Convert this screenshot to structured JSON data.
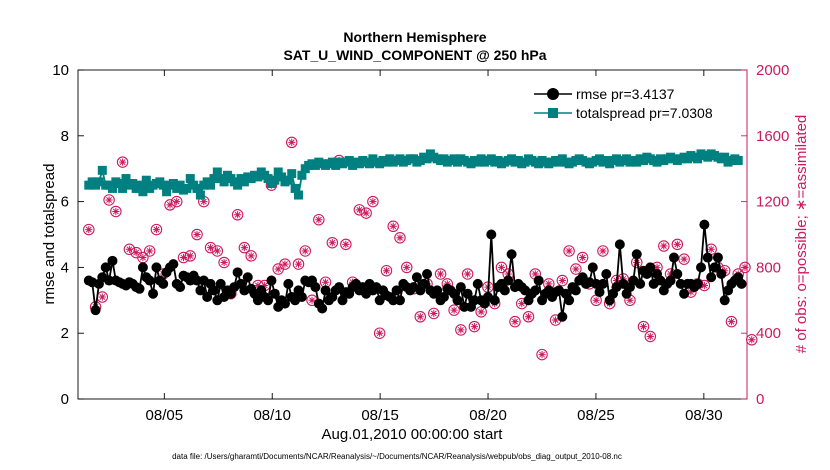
{
  "chart_data": {
    "type": "line",
    "title": "Northern Hemisphere",
    "subtitle": "SAT_U_WIND_COMPONENT @ 250 hPa",
    "xlabel": "Aug.01,2010 00:00:00 start",
    "ylabel_left": "rmse and totalspread",
    "ylabel_right": "# of obs: o=possible; ∗=assimilated",
    "footnote": "data file: /Users/gharamti/Documents/NCAR/Reanalysis/~/Documents/NCAR/Reanalysis/webpub/obs_diag_output_2010-08.nc",
    "xlim": [
      1.0,
      32.0
    ],
    "ylim_left": [
      0,
      10
    ],
    "ylim_right": [
      0,
      2000
    ],
    "x_ticks": [
      {
        "value": 5,
        "label": "08/05"
      },
      {
        "value": 10,
        "label": "08/10"
      },
      {
        "value": 15,
        "label": "08/15"
      },
      {
        "value": 20,
        "label": "08/20"
      },
      {
        "value": 25,
        "label": "08/25"
      },
      {
        "value": 30,
        "label": "08/30"
      }
    ],
    "y_ticks_left": [
      "0",
      "2",
      "4",
      "6",
      "8",
      "10"
    ],
    "y_ticks_right": [
      "0",
      "400",
      "800",
      "1200",
      "1600",
      "2000"
    ],
    "colors": {
      "rmse": "#000000",
      "totalspread": "#008080",
      "obs": "#cc1a5e",
      "right_axis": "#cc1a5e"
    },
    "series": [
      {
        "name": "rmse",
        "legend": "rmse pr=3.4137",
        "axis": "left",
        "values": [
          3.6,
          3.55,
          2.7,
          3.5,
          3.7,
          4.0,
          3.6,
          4.2,
          3.6,
          3.55,
          3.5,
          3.45,
          3.55,
          3.5,
          3.4,
          3.35,
          4.0,
          3.7,
          3.6,
          3.2,
          4.0,
          3.6,
          3.5,
          3.85,
          4.0,
          4.1,
          3.5,
          3.4,
          3.75,
          3.7,
          3.6,
          3.75,
          3.6,
          3.3,
          3.6,
          3.1,
          3.5,
          3.3,
          3.0,
          3.5,
          3.1,
          3.3,
          3.2,
          3.4,
          3.85,
          3.5,
          3.3,
          3.7,
          3.35,
          3.2,
          3.0,
          3.3,
          3.1,
          3.0,
          3.6,
          3.2,
          2.8,
          3.0,
          2.9,
          3.5,
          3.1,
          3.0,
          3.3,
          3.1,
          3.6,
          3.55,
          3.6,
          3.4,
          2.9,
          2.75,
          3.3,
          3.0,
          3.1,
          3.3,
          3.4,
          3.0,
          3.25,
          3.2,
          3.4,
          3.5,
          3.3,
          3.4,
          3.2,
          3.5,
          3.3,
          3.4,
          3.0,
          3.3,
          3.15,
          3.1,
          3.0,
          3.3,
          3.0,
          3.5,
          3.4,
          3.3,
          3.4,
          3.7,
          3.3,
          3.5,
          3.8,
          3.3,
          3.2,
          3.3,
          3.0,
          3.1,
          3.35,
          3.3,
          3.2,
          3.0,
          3.4,
          2.8,
          3.2,
          2.8,
          3.0,
          3.5,
          3.0,
          2.9,
          3.1,
          5.0,
          3.0,
          3.4,
          3.5,
          3.3,
          3.6,
          4.4,
          3.4,
          3.5,
          3.4,
          3.3,
          3.0,
          3.2,
          3.3,
          3.6,
          3.0,
          3.2,
          3.3,
          3.1,
          3.25,
          3.3,
          2.5,
          3.2,
          3.0,
          3.4,
          3.3,
          3.6,
          3.7,
          3.5,
          3.55,
          4.0,
          3.5,
          3.25,
          3.5,
          3.8,
          3.0,
          3.2,
          3.4,
          4.7,
          3.5,
          3.2,
          3.4,
          3.6,
          4.4,
          3.5,
          3.9,
          3.8,
          4.0,
          3.5,
          3.8,
          3.6,
          3.3,
          3.5,
          3.6,
          4.3,
          3.8,
          3.5,
          3.2,
          3.5,
          3.5,
          3.4,
          3.5,
          4.0,
          5.3,
          4.3,
          3.7,
          4.0,
          4.3,
          3.8,
          3.0,
          3.3,
          3.5,
          3.6,
          3.7,
          3.5
        ]
      },
      {
        "name": "totalspread",
        "legend": "totalspread pr=7.0308",
        "axis": "left",
        "values": [
          6.5,
          6.6,
          6.5,
          6.6,
          6.95,
          6.5,
          6.5,
          6.4,
          6.6,
          6.55,
          6.4,
          6.7,
          6.5,
          6.55,
          6.4,
          6.5,
          6.3,
          6.65,
          6.4,
          6.5,
          6.55,
          6.6,
          6.5,
          6.3,
          6.5,
          6.55,
          6.4,
          6.5,
          6.35,
          6.4,
          6.7,
          6.5,
          6.4,
          6.2,
          6.5,
          6.6,
          6.5,
          6.7,
          6.9,
          6.7,
          6.6,
          6.8,
          6.7,
          6.6,
          6.5,
          6.7,
          6.6,
          6.75,
          6.7,
          6.8,
          6.75,
          6.9,
          6.8,
          6.7,
          6.55,
          6.65,
          6.9,
          6.75,
          6.6,
          6.65,
          6.85,
          6.4,
          6.2,
          6.8,
          7.0,
          7.1,
          7.15,
          7.1,
          7.2,
          7.15,
          7.1,
          7.15,
          7.2,
          7.1,
          7.2,
          7.15,
          7.2,
          7.25,
          7.1,
          7.2,
          7.15,
          7.25,
          7.2,
          7.15,
          7.3,
          7.2,
          7.15,
          7.25,
          7.2,
          7.3,
          7.2,
          7.25,
          7.3,
          7.2,
          7.25,
          7.3,
          7.3,
          7.2,
          7.25,
          7.35,
          7.3,
          7.45,
          7.35,
          7.3,
          7.25,
          7.3,
          7.2,
          7.25,
          7.3,
          7.2,
          7.3,
          7.25,
          7.2,
          7.15,
          7.25,
          7.2,
          7.3,
          7.2,
          7.25,
          7.3,
          7.2,
          7.25,
          7.15,
          7.2,
          7.25,
          7.3,
          7.2,
          7.25,
          7.15,
          7.2,
          7.3,
          7.25,
          7.2,
          7.15,
          7.25,
          7.2,
          7.15,
          7.2,
          7.25,
          7.2,
          7.3,
          7.2,
          7.15,
          7.2,
          7.25,
          7.3,
          7.25,
          7.2,
          7.15,
          7.2,
          7.25,
          7.3,
          7.2,
          7.25,
          7.15,
          7.25,
          7.3,
          7.2,
          7.25,
          7.3,
          7.2,
          7.25,
          7.2,
          7.3,
          7.25,
          7.35,
          7.3,
          7.25,
          7.2,
          7.3,
          7.25,
          7.3,
          7.35,
          7.3,
          7.25,
          7.3,
          7.35,
          7.3,
          7.4,
          7.35,
          7.3,
          7.45,
          7.4,
          7.35,
          7.45,
          7.4,
          7.35,
          7.3,
          7.35,
          7.2,
          7.25,
          7.3,
          7.25
        ]
      },
      {
        "name": "obs_possible",
        "legend": "",
        "axis": "right",
        "values": [
          1030,
          780,
          560,
          500,
          620,
          840,
          1210,
          1120,
          1140,
          1150,
          1440,
          860,
          910,
          920,
          890,
          950,
          860,
          860,
          900,
          640,
          1030,
          900,
          760,
          1170,
          1180,
          960,
          1200,
          1150,
          860,
          1020,
          870,
          1120,
          1000,
          710,
          1200,
          760,
          920,
          1030,
          900,
          690,
          830,
          920,
          640,
          610,
          1120,
          820,
          920,
          930,
          870,
          840,
          690,
          630,
          690,
          720,
          1300,
          840,
          790,
          860,
          820,
          880,
          1560,
          830,
          820,
          700,
          900,
          660,
          600,
          1050,
          1090,
          1170,
          710,
          1310,
          950,
          1380,
          1450,
          1450,
          940,
          1120,
          710,
          1080,
          1150,
          960,
          1130,
          1160,
          1200,
          890,
          400,
          720,
          780,
          640,
          1050,
          1010,
          980,
          660,
          800,
          600,
          670,
          700,
          500,
          550,
          700,
          640,
          520,
          850,
          760,
          740,
          700,
          350,
          540,
          500,
          420,
          710,
          760,
          700,
          440,
          740,
          530,
          650,
          680,
          680,
          580,
          360,
          800,
          780,
          760,
          630,
          470,
          510,
          580,
          460,
          500,
          560,
          760,
          530,
          270,
          600,
          700,
          690,
          480,
          620,
          720,
          400,
          900,
          870,
          790,
          830,
          860,
          680,
          700,
          540,
          600,
          620,
          900,
          320,
          580,
          620,
          720,
          780,
          730,
          760,
          600,
          780,
          830,
          780,
          440,
          560,
          380,
          690,
          800,
          750,
          930,
          800,
          760,
          400,
          940,
          820,
          850,
          800,
          650,
          680,
          700,
          820,
          690,
          800,
          910,
          1060,
          800,
          760,
          780,
          780,
          470,
          880,
          760,
          620,
          800,
          380,
          360,
          460
        ]
      },
      {
        "name": "obs_assimilated",
        "legend": "",
        "axis": "right",
        "values": [
          1030,
          780,
          560,
          500,
          620,
          840,
          1210,
          1120,
          1140,
          1150,
          1440,
          860,
          910,
          920,
          890,
          950,
          860,
          860,
          900,
          640,
          1030,
          900,
          760,
          1170,
          1180,
          960,
          1200,
          1150,
          860,
          1020,
          870,
          1120,
          1000,
          710,
          1200,
          760,
          920,
          1030,
          900,
          690,
          830,
          920,
          640,
          610,
          1120,
          820,
          920,
          930,
          870,
          840,
          690,
          630,
          690,
          720,
          1300,
          840,
          790,
          860,
          820,
          880,
          1560,
          830,
          820,
          700,
          900,
          660,
          600,
          1050,
          1090,
          1170,
          710,
          1310,
          950,
          1380,
          1450,
          1450,
          940,
          1120,
          710,
          1080,
          1150,
          960,
          1130,
          1160,
          1200,
          890,
          400,
          720,
          780,
          640,
          1050,
          1010,
          980,
          660,
          800,
          600,
          670,
          700,
          500,
          550,
          700,
          640,
          520,
          850,
          760,
          740,
          700,
          350,
          540,
          500,
          420,
          710,
          760,
          700,
          440,
          740,
          530,
          650,
          680,
          680,
          580,
          360,
          800,
          780,
          760,
          630,
          470,
          510,
          580,
          460,
          500,
          560,
          760,
          530,
          270,
          600,
          700,
          690,
          480,
          620,
          720,
          400,
          900,
          870,
          790,
          830,
          860,
          680,
          700,
          540,
          600,
          620,
          900,
          320,
          580,
          620,
          720,
          780,
          730,
          760,
          600,
          780,
          830,
          780,
          440,
          560,
          380,
          690,
          800,
          750,
          930,
          800,
          760,
          400,
          940,
          820,
          850,
          800,
          650,
          680,
          700,
          820,
          690,
          800,
          910,
          1060,
          800,
          760,
          780,
          780,
          470,
          880,
          760,
          620,
          800,
          380,
          360,
          460
        ]
      }
    ]
  }
}
